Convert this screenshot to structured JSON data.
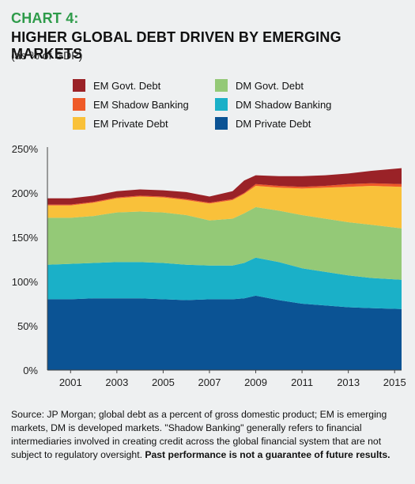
{
  "header": {
    "label": "CHART 4:",
    "title": "HIGHER GLOBAL DEBT DRIVEN BY EMERGING MARKETS",
    "subtitle": "(as % of GDP)"
  },
  "footer": {
    "source": "Source: JP Morgan; global debt as a percent of gross domestic product; EM is emerging markets, DM is developed markets. \"Shadow Banking\" generally refers to financial intermediaries involved in creating credit across the global financial system that are not subject to regulatory oversight.",
    "disclaimer": "Past performance is not a guarantee of future results."
  },
  "chart_data": {
    "type": "area",
    "stacked": true,
    "x": [
      2000,
      2001,
      2002,
      2003,
      2004,
      2005,
      2006,
      2007,
      2008,
      2008.5,
      2009,
      2010,
      2011,
      2012,
      2013,
      2014,
      2015.3
    ],
    "x_ticks": [
      "2001",
      "2003",
      "2005",
      "2007",
      "2009",
      "2011",
      "2013",
      "2015"
    ],
    "y_ticks": [
      "0%",
      "50%",
      "100%",
      "150%",
      "200%",
      "250%"
    ],
    "ylim": [
      0,
      250
    ],
    "xlim": [
      2000,
      2015.3
    ],
    "grid": false,
    "legend_position": "top",
    "series": [
      {
        "name": "DM Private Debt",
        "color": "#0b5394",
        "values": [
          80,
          80,
          81,
          81,
          81,
          80,
          79,
          80,
          80,
          81,
          84,
          79,
          75,
          73,
          71,
          70,
          69
        ]
      },
      {
        "name": "DM Shadow Banking",
        "color": "#1ab0c8",
        "values": [
          39,
          40,
          40,
          41,
          41,
          41,
          40,
          38,
          38,
          40,
          43,
          43,
          40,
          38,
          36,
          34,
          33
        ]
      },
      {
        "name": "DM Govt. Debt",
        "color": "#94c977",
        "values": [
          53,
          52,
          53,
          56,
          57,
          57,
          56,
          51,
          53,
          56,
          57,
          58,
          60,
          60,
          60,
          60,
          58
        ]
      },
      {
        "name": "EM Private Debt",
        "color": "#f9c13a",
        "values": [
          14,
          14,
          15,
          16,
          17,
          17,
          17,
          19,
          21,
          22,
          24,
          26,
          30,
          35,
          40,
          44,
          47
        ]
      },
      {
        "name": "EM Shadow Banking",
        "color": "#ef5a28",
        "values": [
          1,
          1,
          1,
          1,
          1,
          1,
          1,
          1,
          1,
          1,
          2,
          2,
          2,
          2,
          3,
          3,
          3
        ]
      },
      {
        "name": "EM Govt. Debt",
        "color": "#9a2227",
        "values": [
          7,
          7,
          7,
          7,
          7,
          7,
          8,
          7,
          9,
          14,
          10,
          11,
          12,
          12,
          12,
          14,
          18
        ]
      }
    ],
    "legend_order": [
      "EM Govt. Debt",
      "DM Govt. Debt",
      "EM Shadow Banking",
      "DM Shadow Banking",
      "EM Private Debt",
      "DM Private Debt"
    ]
  }
}
